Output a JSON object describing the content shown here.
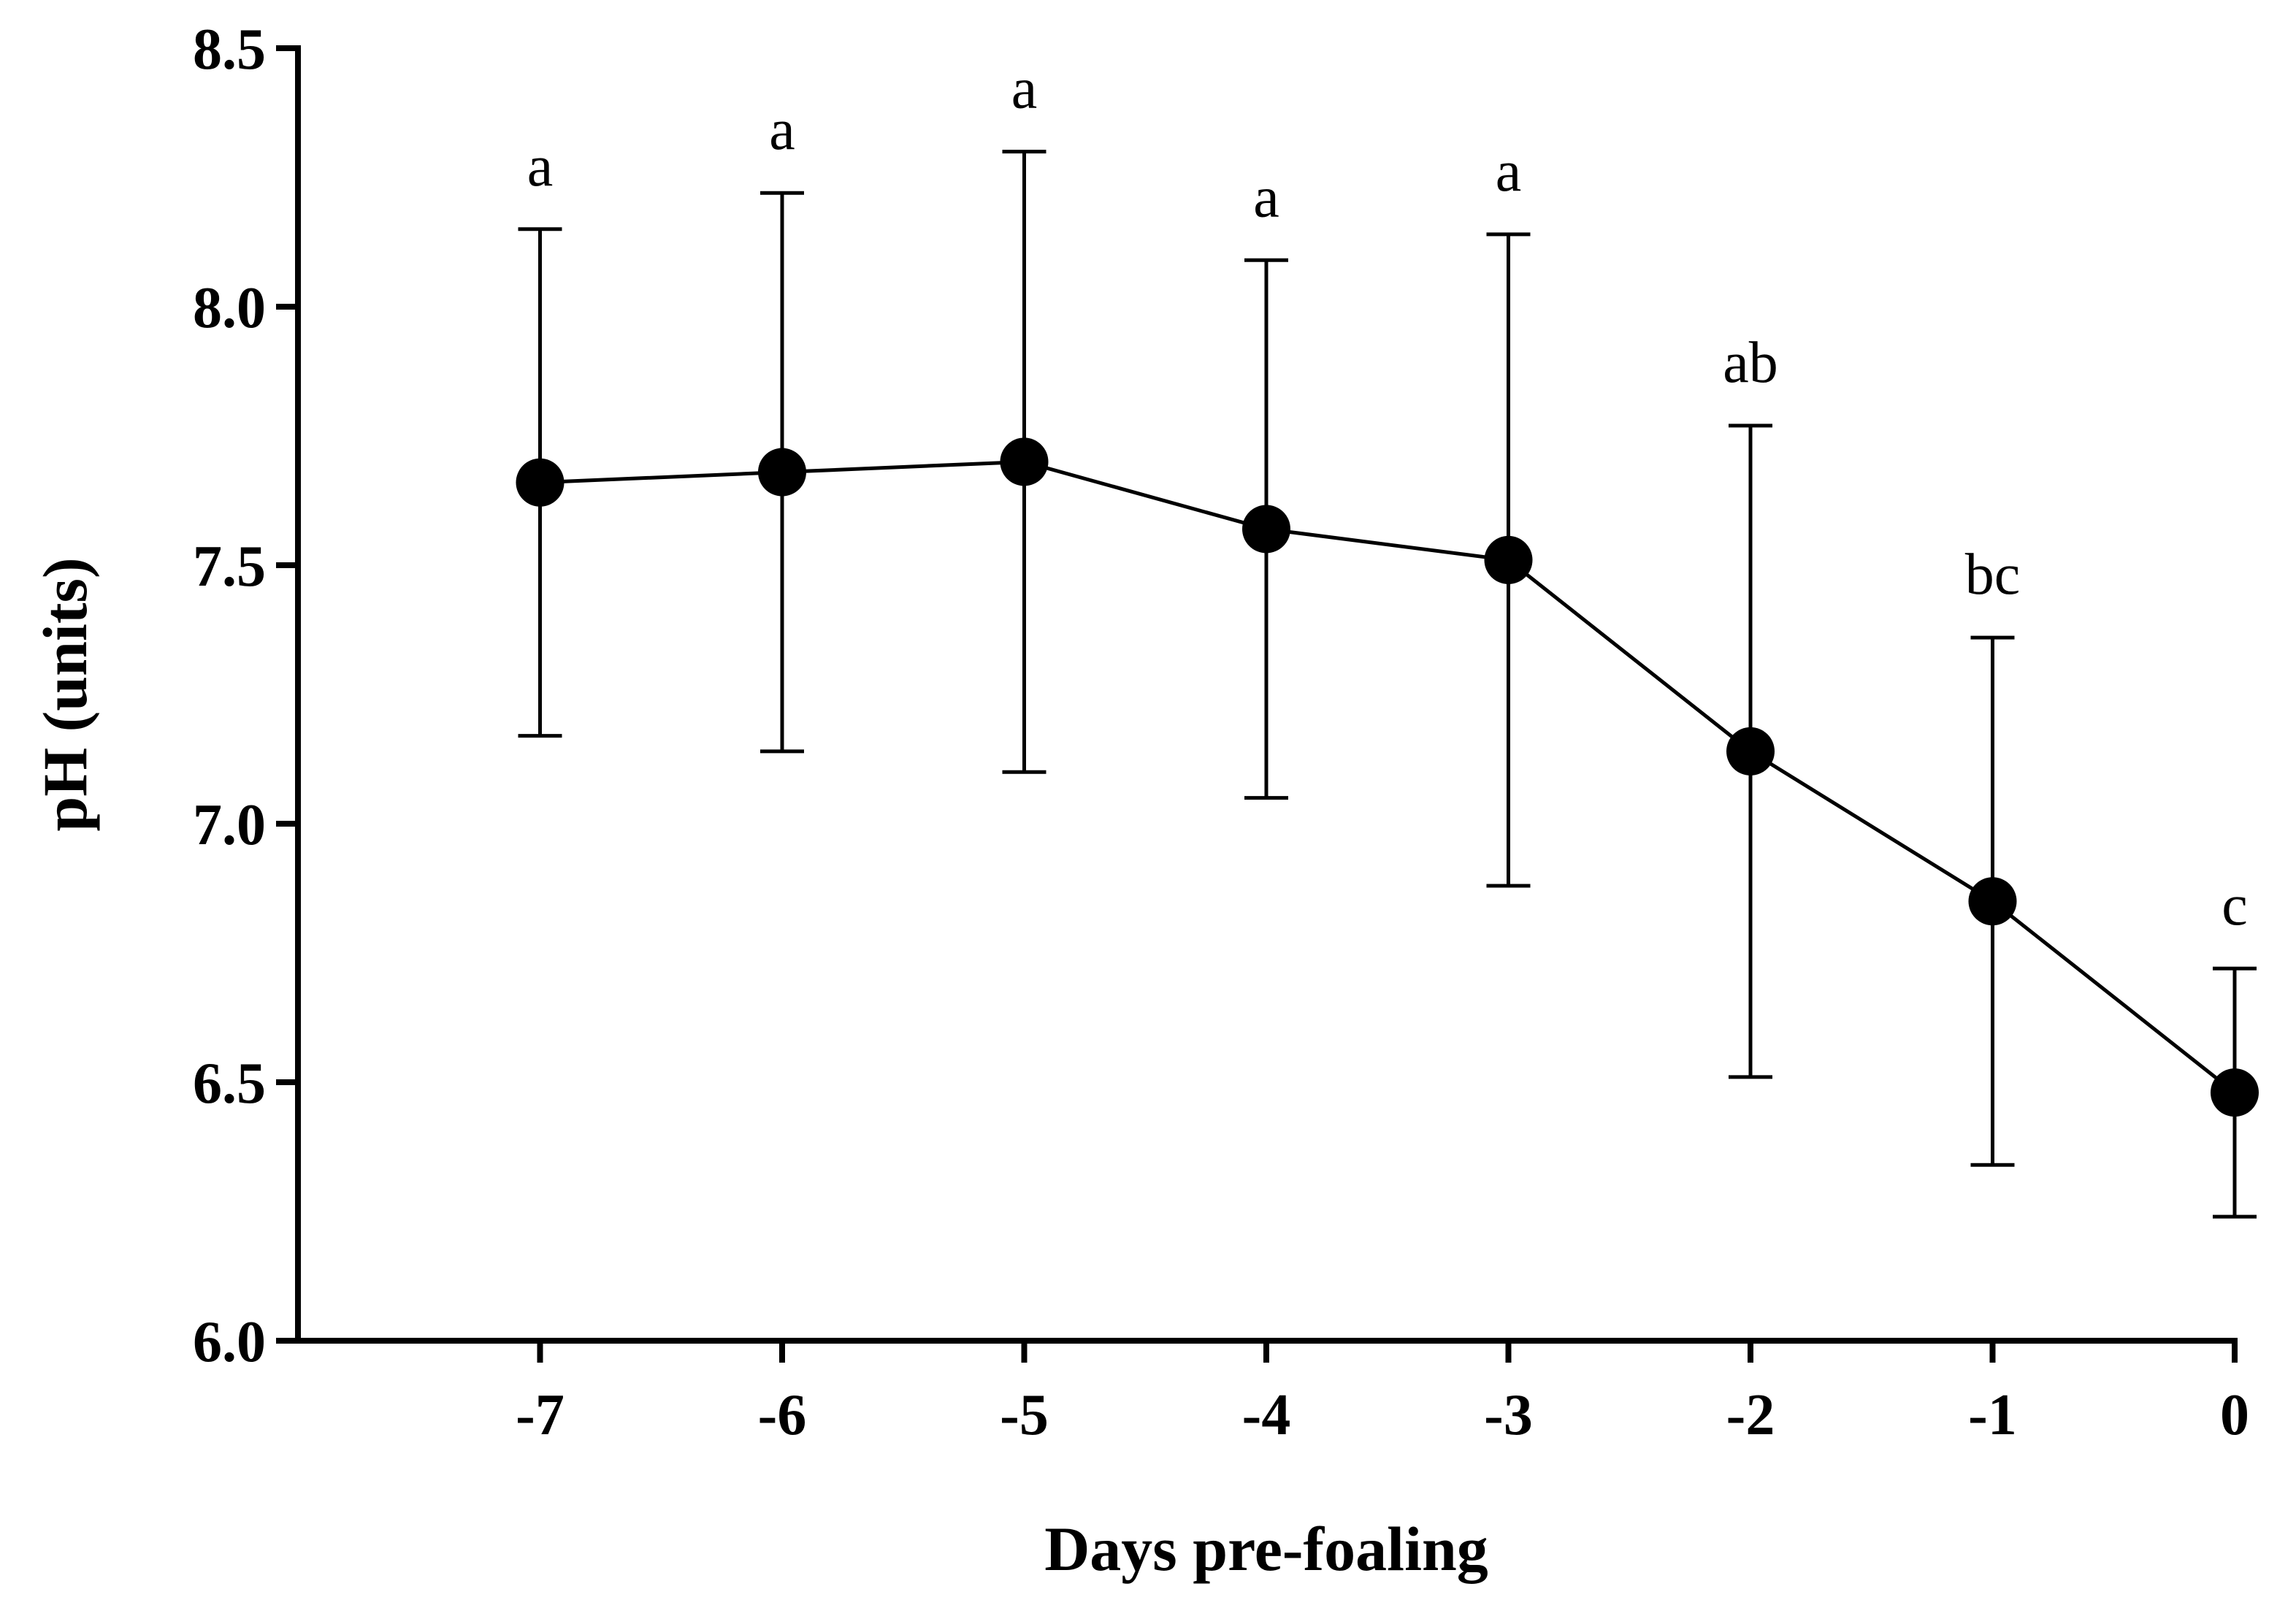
{
  "chart_data": {
    "type": "line",
    "title": "",
    "xlabel": "Days pre-foaling",
    "ylabel": "pH (units)",
    "x": [
      -7,
      -6,
      -5,
      -4,
      -3,
      -2,
      -1,
      0
    ],
    "x_tick_labels": [
      "-7",
      "-6",
      "-5",
      "-4",
      "-3",
      "-2",
      "-1",
      "0"
    ],
    "y_tick_labels": [
      "6.0",
      "6.5",
      "7.0",
      "7.5",
      "8.0",
      "8.5"
    ],
    "y_ticks": [
      6.0,
      6.5,
      7.0,
      7.5,
      8.0,
      8.5
    ],
    "ylim": [
      6.0,
      8.5
    ],
    "xlim": [
      -8,
      0
    ],
    "grid": false,
    "series": [
      {
        "name": "pH",
        "values": [
          7.66,
          7.68,
          7.7,
          7.57,
          7.51,
          7.14,
          6.85,
          6.48
        ],
        "error_upper": [
          8.15,
          8.22,
          8.3,
          8.09,
          8.14,
          7.77,
          7.36,
          6.72
        ],
        "error_lower": [
          7.17,
          7.14,
          7.1,
          7.05,
          6.88,
          6.51,
          6.34,
          6.24
        ],
        "significance_labels": [
          "a",
          "a",
          "a",
          "a",
          "a",
          "ab",
          "bc",
          "c"
        ]
      }
    ]
  }
}
